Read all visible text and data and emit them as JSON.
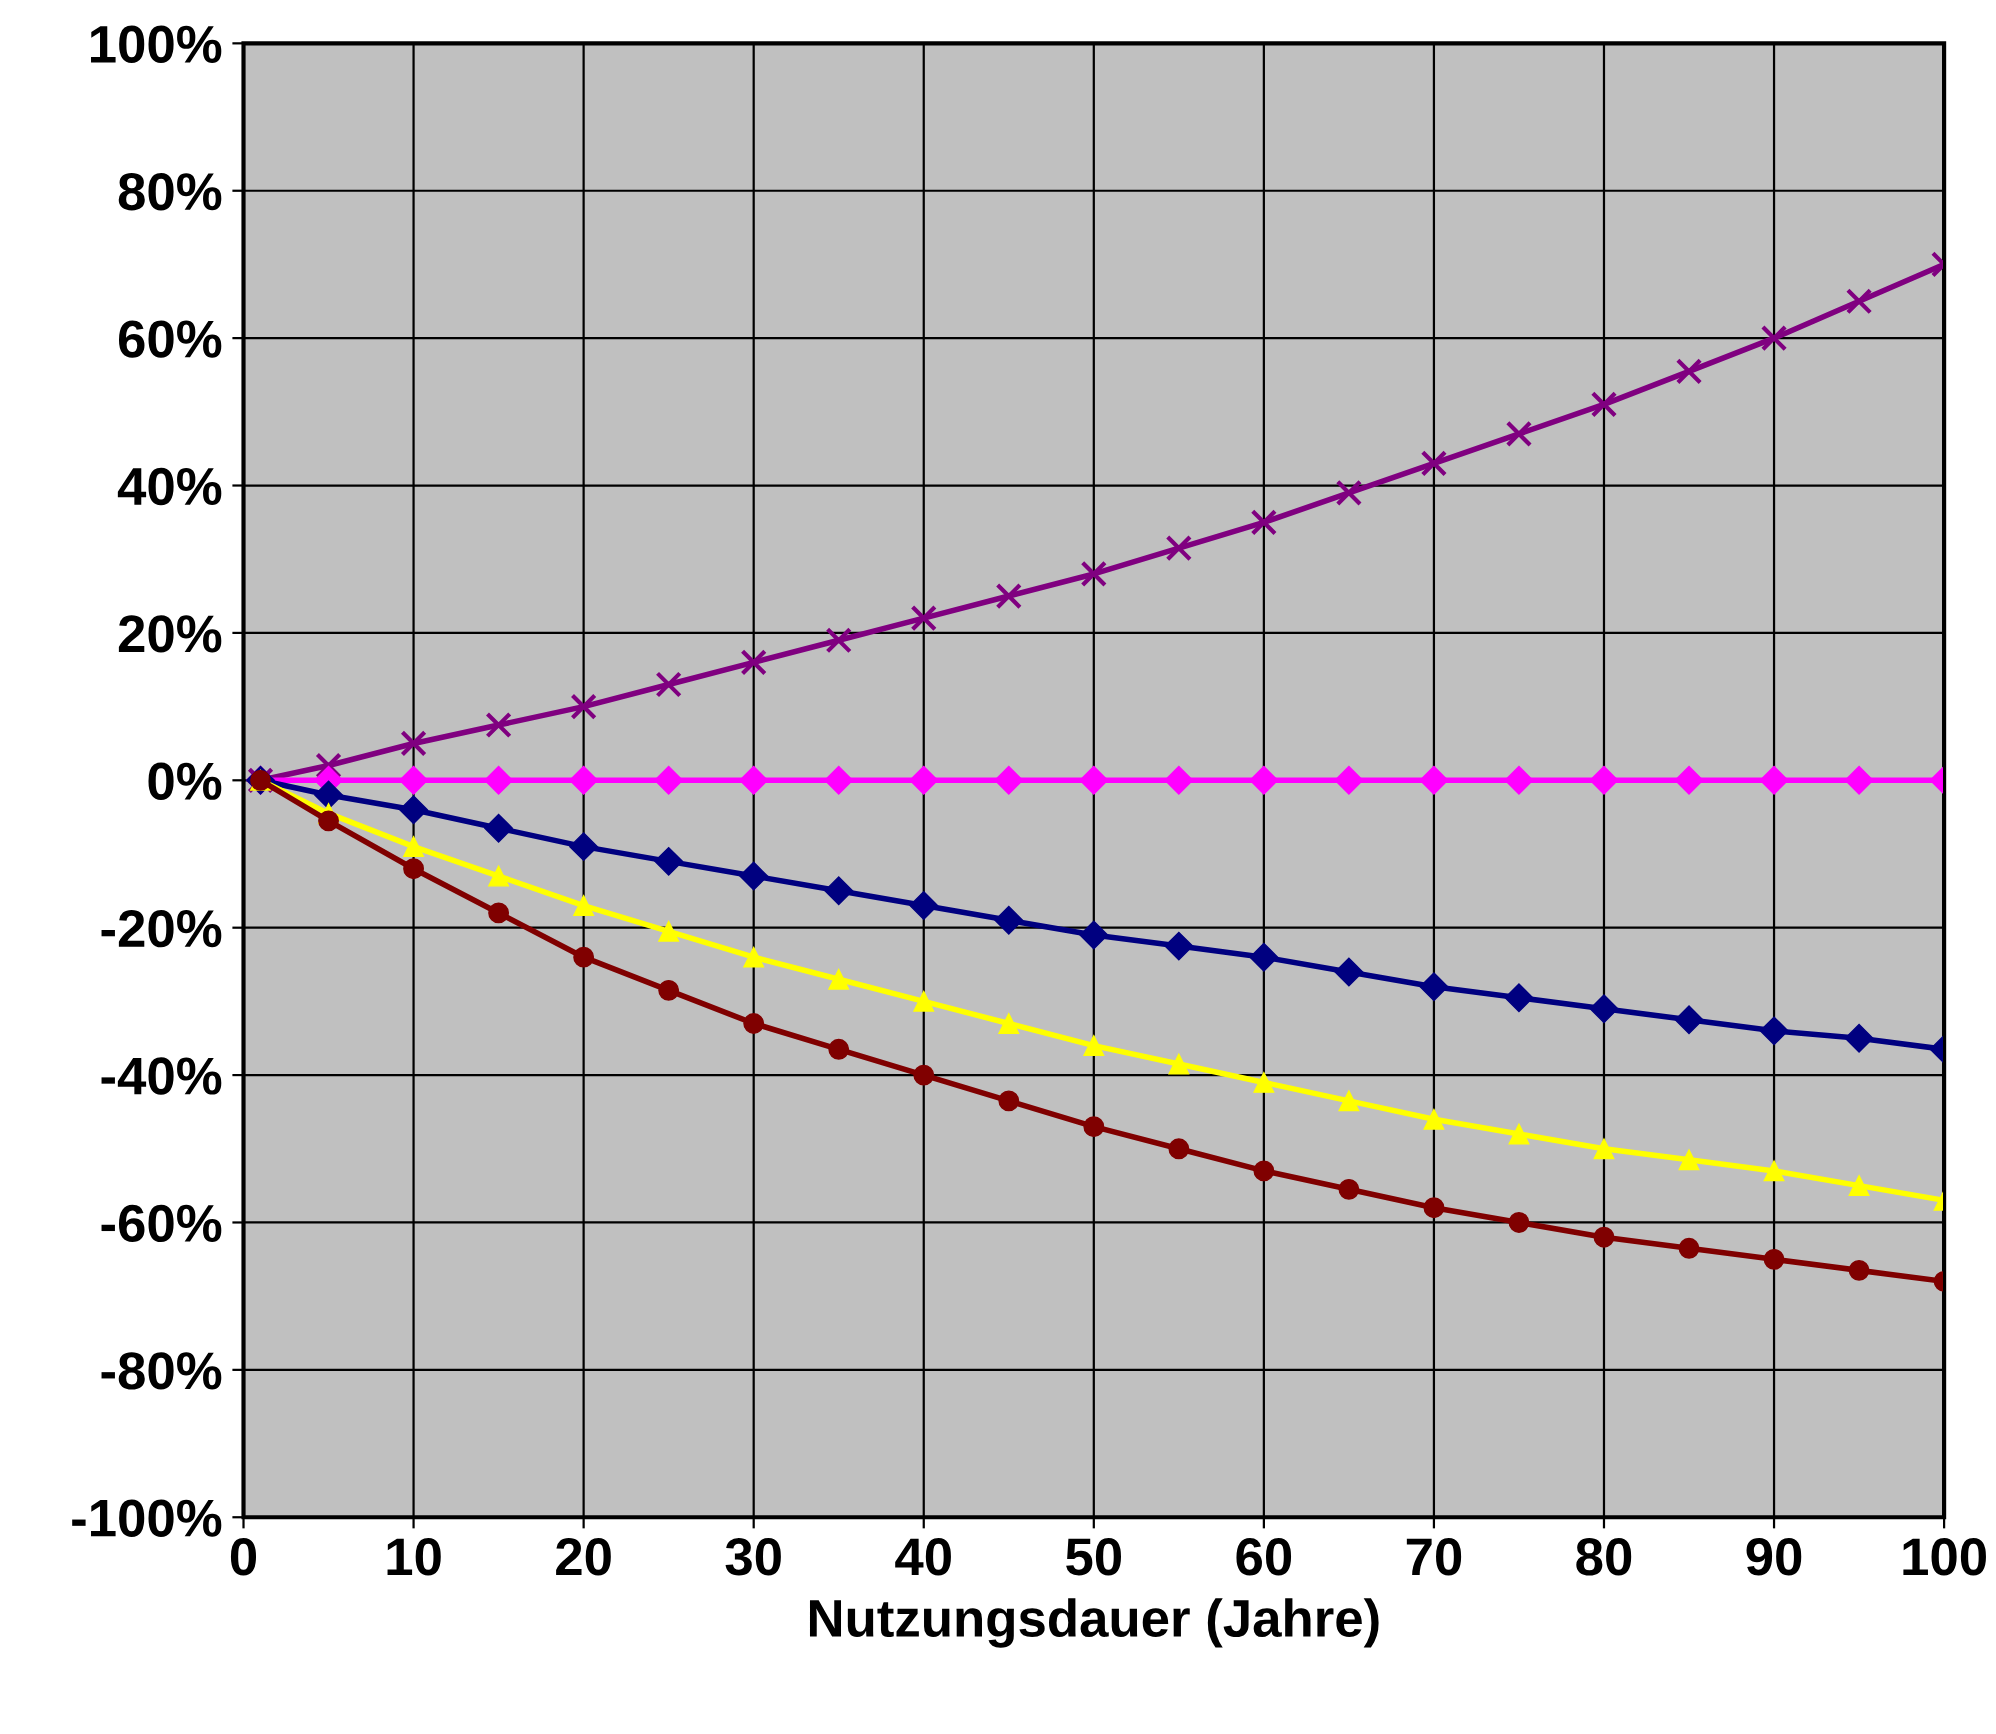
{
  "chart_data": {
    "type": "line",
    "xlabel": "Nutzungsdauer (Jahre)",
    "xlim": [
      0,
      100
    ],
    "xticks": [
      0,
      10,
      20,
      30,
      40,
      50,
      60,
      70,
      80,
      90,
      100
    ],
    "ylim": [
      -100,
      100
    ],
    "yticks": [
      {
        "value": -100,
        "label": "-100%"
      },
      {
        "value": -80,
        "label": "-80%"
      },
      {
        "value": -60,
        "label": "-60%"
      },
      {
        "value": -40,
        "label": "-40%"
      },
      {
        "value": -20,
        "label": "-20%"
      },
      {
        "value": 0,
        "label": "0%"
      },
      {
        "value": 20,
        "label": "20%"
      },
      {
        "value": 40,
        "label": "40%"
      },
      {
        "value": 60,
        "label": "60%"
      },
      {
        "value": 80,
        "label": "80%"
      },
      {
        "value": 100,
        "label": "100%"
      }
    ],
    "grid": true,
    "legend": false,
    "x": [
      1,
      5,
      10,
      15,
      20,
      25,
      30,
      35,
      40,
      45,
      50,
      55,
      60,
      65,
      70,
      75,
      80,
      85,
      90,
      95,
      100
    ],
    "series": [
      {
        "color": "#800080",
        "marker": "cross",
        "values": [
          0,
          2,
          5,
          7.5,
          10,
          13,
          16,
          19,
          22,
          25,
          28,
          31.5,
          35,
          39,
          43,
          47,
          51,
          55.5,
          60,
          65,
          70
        ]
      },
      {
        "color": "#ff00ff",
        "marker": "diamond",
        "values": [
          0,
          0,
          0,
          0,
          0,
          0,
          0,
          0,
          0,
          0,
          0,
          0,
          0,
          0,
          0,
          0,
          0,
          0,
          0,
          0,
          0
        ]
      },
      {
        "color": "#000080",
        "marker": "diamond",
        "values": [
          0,
          -2,
          -4,
          -6.5,
          -9,
          -11,
          -13,
          -15,
          -17,
          -19,
          -21,
          -22.5,
          -24,
          -26,
          -28,
          -29.5,
          -31,
          -32.5,
          -34,
          -35,
          -36.5
        ]
      },
      {
        "color": "#ffff00",
        "marker": "triangle",
        "values": [
          0,
          -4.5,
          -9,
          -13,
          -17,
          -20.5,
          -24,
          -27,
          -30,
          -33,
          -36,
          -38.5,
          -41,
          -43.5,
          -46,
          -48,
          -50,
          -51.5,
          -53,
          -55,
          -57
        ]
      },
      {
        "color": "#800000",
        "marker": "circle",
        "values": [
          0,
          -5.5,
          -12,
          -18,
          -24,
          -28.5,
          -33,
          -36.5,
          -40,
          -43.5,
          -47,
          -50,
          -53,
          -55.5,
          -58,
          -60,
          -62,
          -63.5,
          -65,
          -66.5,
          -68
        ]
      }
    ]
  }
}
